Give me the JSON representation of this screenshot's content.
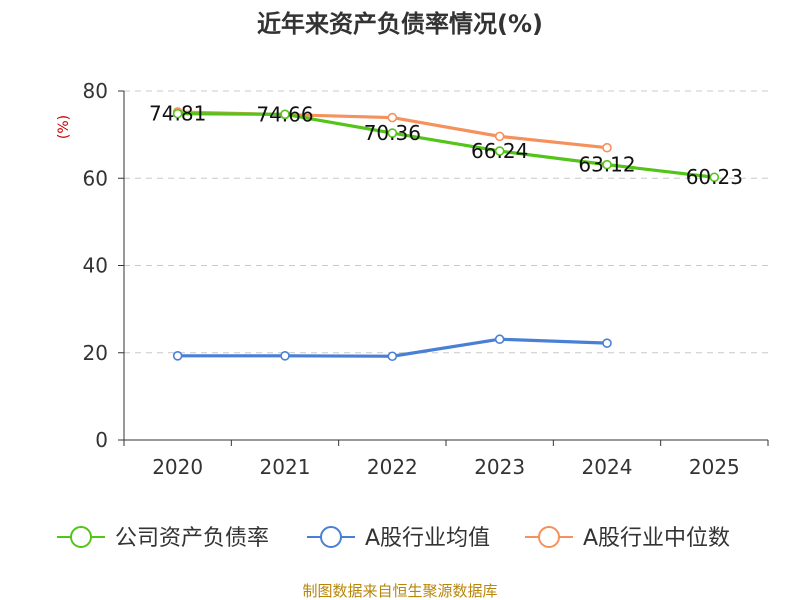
{
  "chart_data": {
    "type": "line",
    "title": "近年来资产负债率情况(%)",
    "xlabel": "",
    "ylabel": "(%)",
    "categories": [
      "2020",
      "2021",
      "2022",
      "2023",
      "2024",
      "2025"
    ],
    "ylim": [
      0,
      80
    ],
    "yticks": [
      0,
      20,
      40,
      60,
      80
    ],
    "grid": true,
    "legend_position": "bottom",
    "series": [
      {
        "name": "公司资产负债率",
        "color": "#52c41a",
        "values": [
          74.81,
          74.66,
          70.36,
          66.24,
          63.12,
          60.23
        ],
        "labels": [
          "74.81",
          "74.66",
          "70.36",
          "66.24",
          "63.12",
          "60.23"
        ]
      },
      {
        "name": "A股行业均值",
        "color": "#4a7fd6",
        "values": [
          19.3,
          19.3,
          19.2,
          23.1,
          22.2,
          null
        ]
      },
      {
        "name": "A股行业中位数",
        "color": "#f5915c",
        "values": [
          75.2,
          74.6,
          73.9,
          69.6,
          67.0,
          null
        ]
      }
    ],
    "source": "制图数据来自恒生聚源数据库"
  }
}
